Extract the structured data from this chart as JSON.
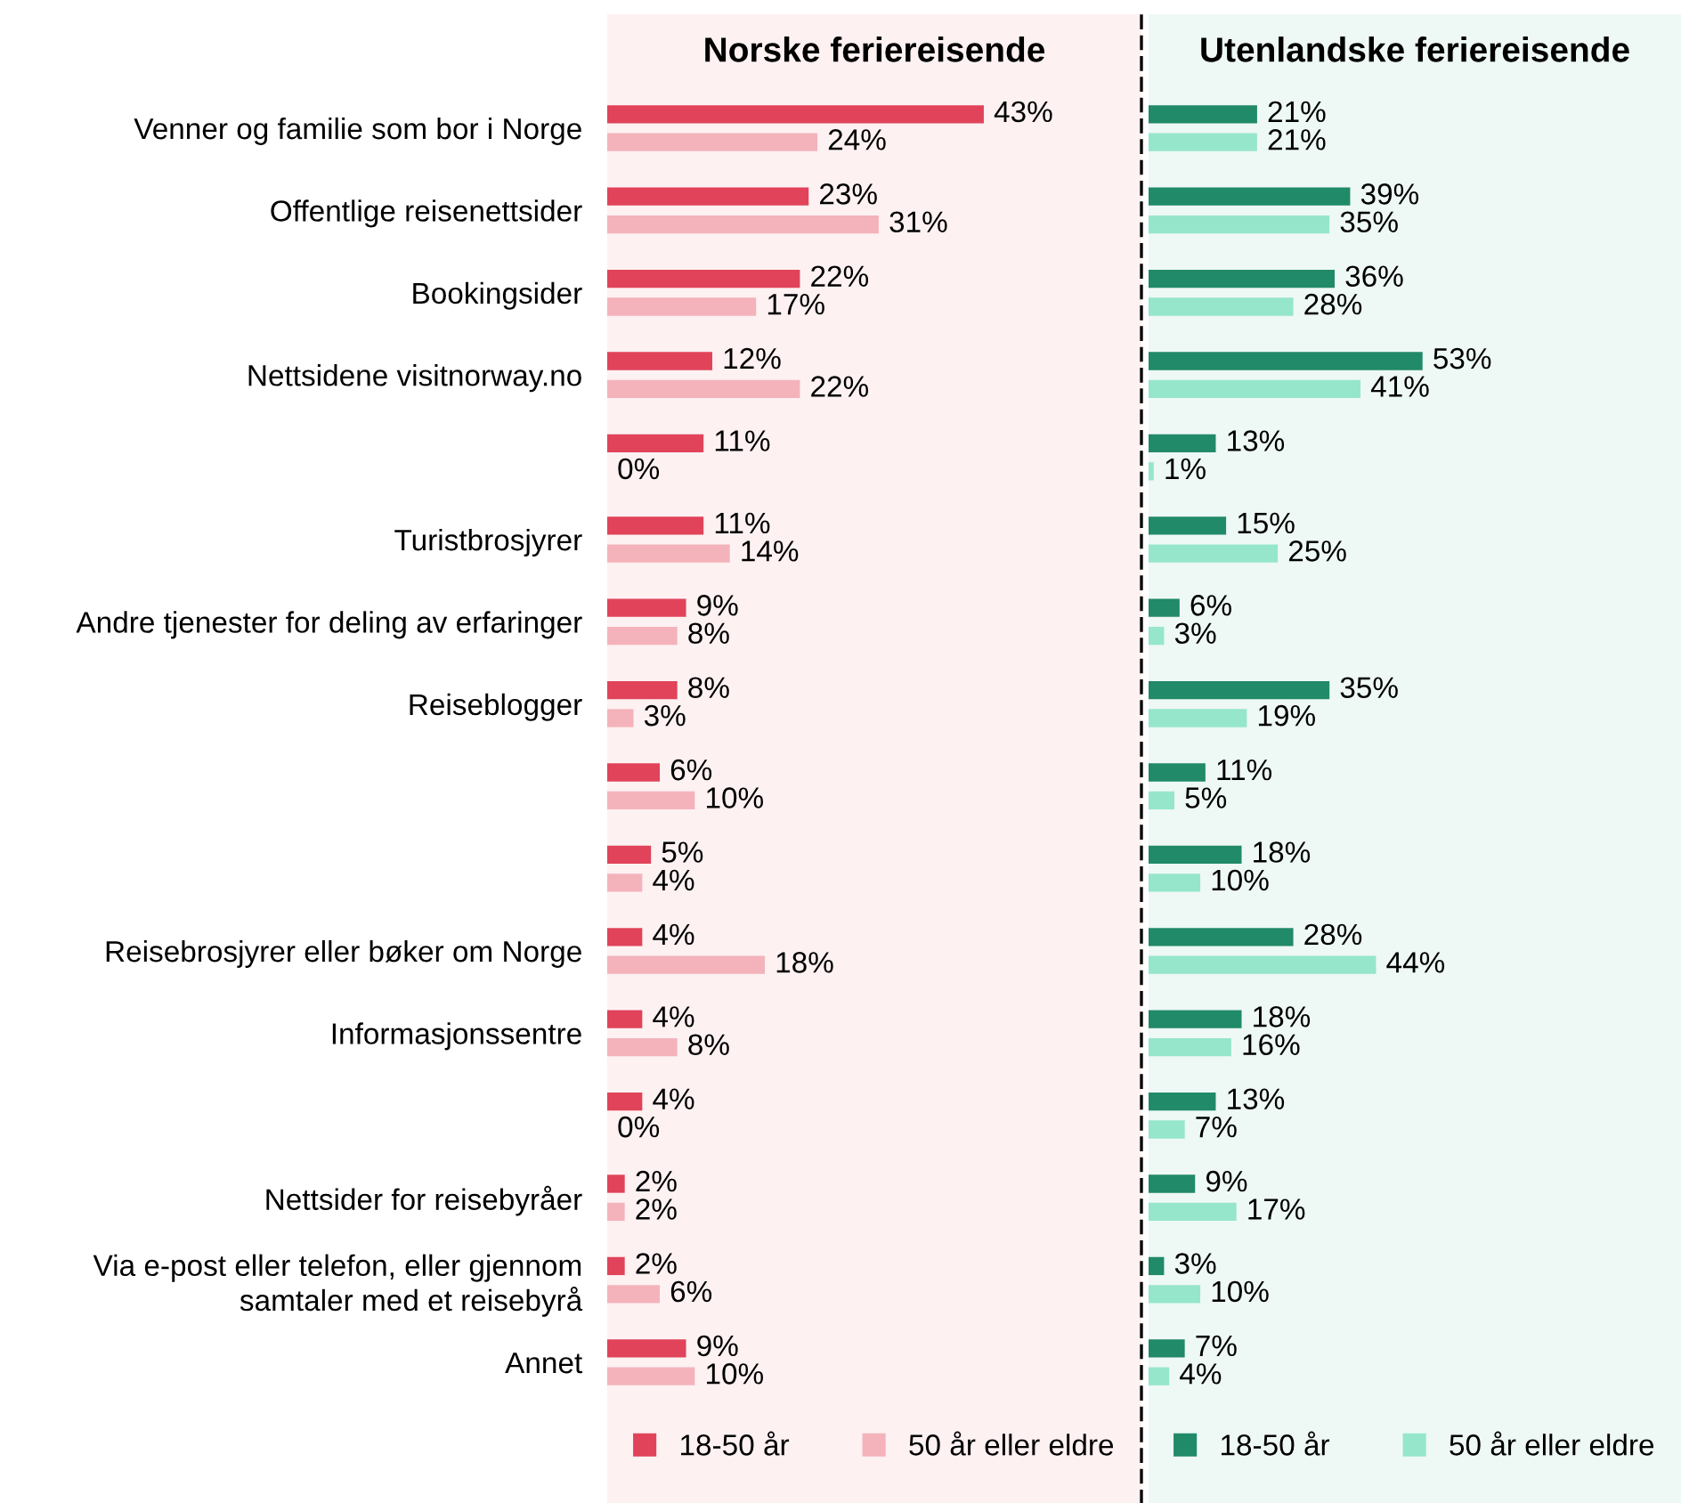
{
  "chart_data": [
    {
      "type": "bar",
      "orientation": "horizontal",
      "title": "Norske feriereisende",
      "tick_labels": "y",
      "legend": "bottom",
      "xlim": [
        0,
        61
      ],
      "categories": [
        "Venner og familie som bor i Norge",
        "Offentlige reisenettsider",
        "Bookingsider",
        "Nettsidene visitnorway.no",
        null,
        "Turistbrosjyrer",
        "Andre tjenester for deling av erfaringer",
        "Reiseblogger",
        null,
        null,
        "Reisebrosjyrer eller bøker om Norge",
        "Informasjonssentre",
        null,
        "Nettsider for reisebyråer",
        "Via e-post eller telefon, eller gjennom\nsamtaler med et reisebyrå",
        "Annet"
      ],
      "series": [
        {
          "name": "18-50 år",
          "color": "#e0435a",
          "values": [
            43,
            23,
            22,
            12,
            11,
            11,
            9,
            8,
            6,
            5,
            4,
            4,
            4,
            2,
            2,
            9
          ],
          "value_labels": [
            "43%",
            "23%",
            "22%",
            "12%",
            "11%",
            "11%",
            "9%",
            "8%",
            "6%",
            "5%",
            "4%",
            "4%",
            "4%",
            "2%",
            "2%",
            "9%"
          ]
        },
        {
          "name": "50 år eller eldre",
          "color": "#f4b3bb",
          "values": [
            24,
            31,
            17,
            22,
            0,
            14,
            8,
            3,
            10,
            4,
            18,
            8,
            0,
            2,
            6,
            10
          ],
          "value_labels": [
            "24%",
            "31%",
            "17%",
            "22%",
            "0%",
            "14%",
            "8%",
            "3%",
            "10%",
            "4%",
            "18%",
            "8%",
            "0%",
            "2%",
            "6%",
            "10%"
          ]
        }
      ]
    },
    {
      "type": "bar",
      "orientation": "horizontal",
      "title": "Utenlandske feriereisende",
      "tick_labels": false,
      "legend": "bottom",
      "xlim": [
        0,
        103
      ],
      "series": [
        {
          "name": "18-50 år",
          "color": "#218a68",
          "values": [
            21,
            39,
            36,
            53,
            13,
            15,
            6,
            35,
            11,
            18,
            28,
            18,
            13,
            9,
            3,
            7
          ],
          "value_labels": [
            "21%",
            "39%",
            "36%",
            "53%",
            "13%",
            "15%",
            "6%",
            "35%",
            "11%",
            "18%",
            "28%",
            "18%",
            "13%",
            "9%",
            "3%",
            "7%"
          ]
        },
        {
          "name": "50 år eller eldre",
          "color": "#96e6cc",
          "values": [
            21,
            35,
            28,
            41,
            1,
            25,
            3,
            19,
            5,
            10,
            44,
            16,
            7,
            17,
            10,
            4
          ],
          "value_labels": [
            "21%",
            "35%",
            "28%",
            "41%",
            "1%",
            "25%",
            "3%",
            "19%",
            "5%",
            "10%",
            "44%",
            "16%",
            "7%",
            "17%",
            "10%",
            "4%"
          ]
        }
      ]
    }
  ]
}
